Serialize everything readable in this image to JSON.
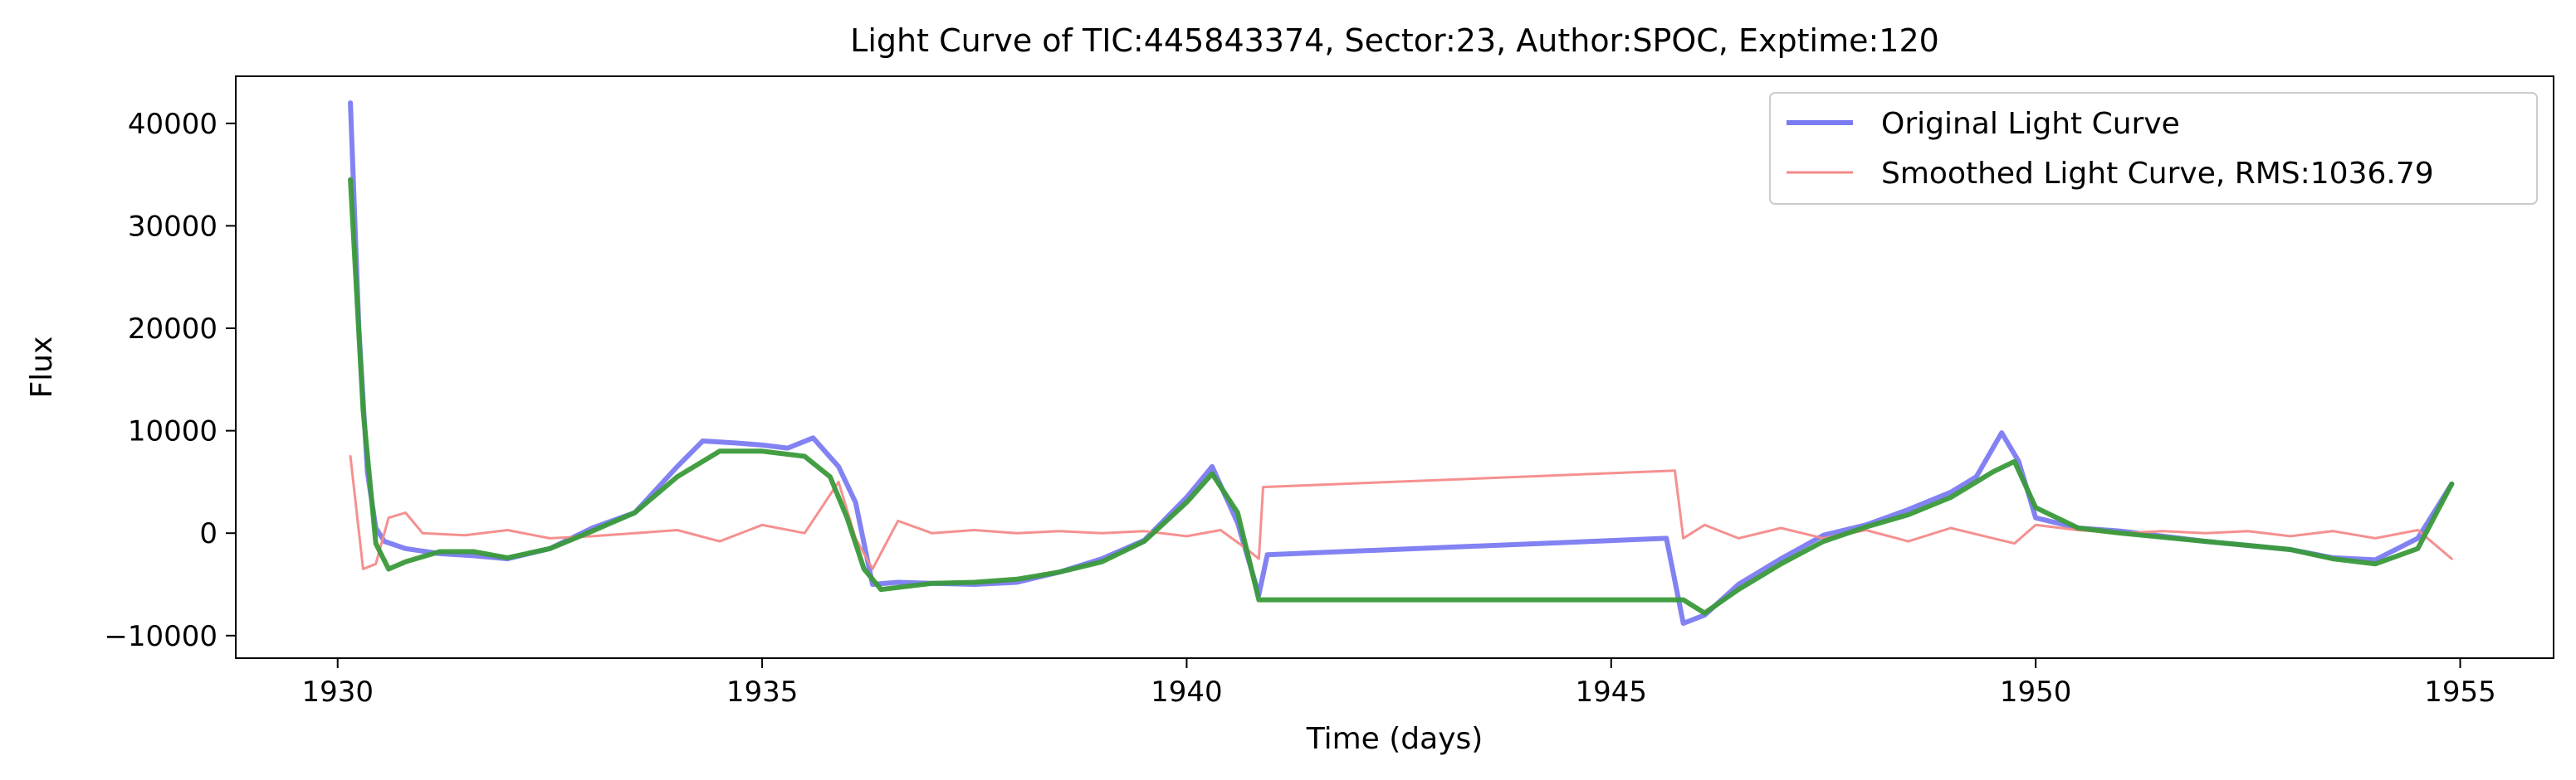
{
  "chart_data": {
    "type": "line",
    "title": "Light Curve of TIC:445843374, Sector:23, Author:SPOC, Exptime:120",
    "xlabel": "Time (days)",
    "ylabel": "Flux",
    "xlim": [
      1928.8,
      1956.1
    ],
    "ylim": [
      -12200,
      44600
    ],
    "xticks": [
      1930,
      1935,
      1940,
      1945,
      1950,
      1955
    ],
    "yticks": [
      -10000,
      0,
      10000,
      20000,
      30000,
      40000
    ],
    "xtick_labels": [
      "1930",
      "1935",
      "1940",
      "1945",
      "1950",
      "1955"
    ],
    "ytick_labels": [
      "−10000",
      "0",
      "10000",
      "20000",
      "30000",
      "40000"
    ],
    "grid": false,
    "legend": {
      "placement": "top-right",
      "entries": [
        {
          "label": "Original Light Curve",
          "color": "#7b7bf2"
        },
        {
          "label": "Smoothed Light Curve, RMS:1036.79",
          "color": "#f48a8a"
        }
      ]
    },
    "series": [
      {
        "name": "Original Light Curve",
        "color": "#7b7bf2",
        "x": [
          1930.15,
          1930.25,
          1930.35,
          1930.45,
          1930.55,
          1930.8,
          1931.2,
          1931.6,
          1932.0,
          1932.5,
          1933.0,
          1933.5,
          1934.0,
          1934.3,
          1934.7,
          1935.0,
          1935.3,
          1935.6,
          1935.9,
          1936.1,
          1936.3,
          1936.6,
          1937.0,
          1937.5,
          1938.0,
          1938.5,
          1939.0,
          1939.5,
          1940.0,
          1940.3,
          1940.6,
          1940.85,
          1940.95,
          1945.65,
          1945.85,
          1946.1,
          1946.5,
          1947.0,
          1947.5,
          1948.0,
          1948.5,
          1949.0,
          1949.3,
          1949.6,
          1949.8,
          1950.0,
          1950.5,
          1951.0,
          1951.5,
          1952.0,
          1952.5,
          1953.0,
          1953.5,
          1954.0,
          1954.5,
          1954.9
        ],
        "y": [
          42000,
          20000,
          6000,
          500,
          -800,
          -1500,
          -2000,
          -2200,
          -2500,
          -1500,
          500,
          2000,
          6500,
          9000,
          8800,
          8600,
          8300,
          9300,
          6500,
          3000,
          -5000,
          -4800,
          -4900,
          -5000,
          -4800,
          -3800,
          -2500,
          -700,
          3500,
          6500,
          1000,
          -6000,
          -2100,
          -500,
          -8800,
          -8000,
          -5000,
          -2500,
          -200,
          800,
          2300,
          4000,
          5500,
          9800,
          7000,
          1500,
          500,
          200,
          -300,
          -800,
          -1200,
          -1600,
          -2400,
          -2600,
          -500,
          4800
        ]
      },
      {
        "name": "Smoothed Light Curve, RMS:1036.79",
        "color": "#f48a8a",
        "x": [
          1930.15,
          1930.3,
          1930.45,
          1930.6,
          1930.8,
          1931.0,
          1931.5,
          1932.0,
          1932.5,
          1933.0,
          1933.5,
          1934.0,
          1934.5,
          1935.0,
          1935.5,
          1935.9,
          1936.1,
          1936.3,
          1936.6,
          1937.0,
          1937.5,
          1938.0,
          1938.5,
          1939.0,
          1939.5,
          1940.0,
          1940.4,
          1940.7,
          1940.85,
          1940.9,
          1945.75,
          1945.85,
          1946.1,
          1946.5,
          1947.0,
          1947.5,
          1948.0,
          1948.5,
          1949.0,
          1949.5,
          1949.75,
          1950.0,
          1950.5,
          1951.0,
          1951.5,
          1952.0,
          1952.5,
          1953.0,
          1953.5,
          1954.0,
          1954.5,
          1954.9
        ],
        "y": [
          7500,
          -3500,
          -3000,
          1500,
          2000,
          0,
          -200,
          300,
          -500,
          -300,
          0,
          300,
          -800,
          800,
          0,
          5000,
          -500,
          -3500,
          1200,
          0,
          300,
          0,
          200,
          0,
          200,
          -300,
          300,
          -1500,
          -2500,
          4500,
          6100,
          -500,
          800,
          -500,
          500,
          -500,
          300,
          -800,
          500,
          -500,
          -1000,
          800,
          300,
          0,
          200,
          0,
          200,
          -300,
          200,
          -500,
          300,
          -2500
        ]
      },
      {
        "name": "",
        "color": "#3a9a3a",
        "x": [
          1930.15,
          1930.3,
          1930.45,
          1930.6,
          1930.8,
          1931.2,
          1931.6,
          1932.0,
          1932.5,
          1933.0,
          1933.5,
          1934.0,
          1934.5,
          1935.0,
          1935.5,
          1935.8,
          1936.0,
          1936.2,
          1936.4,
          1936.6,
          1937.0,
          1937.5,
          1938.0,
          1938.5,
          1939.0,
          1939.5,
          1940.0,
          1940.3,
          1940.6,
          1940.85,
          1941.0,
          1945.7,
          1945.85,
          1946.1,
          1946.5,
          1947.0,
          1947.5,
          1948.0,
          1948.5,
          1949.0,
          1949.5,
          1949.75,
          1950.0,
          1950.5,
          1951.0,
          1951.5,
          1952.0,
          1952.5,
          1953.0,
          1953.5,
          1954.0,
          1954.5,
          1954.9
        ],
        "y": [
          34500,
          12000,
          -1000,
          -3500,
          -2800,
          -1800,
          -1800,
          -2400,
          -1500,
          200,
          2000,
          5500,
          8000,
          8000,
          7500,
          5500,
          1500,
          -3500,
          -5500,
          -5300,
          -4900,
          -4800,
          -4500,
          -3800,
          -2800,
          -800,
          3000,
          5800,
          2000,
          -6500,
          -6500,
          -6500,
          -6500,
          -7800,
          -5500,
          -3000,
          -800,
          600,
          1800,
          3500,
          6000,
          7000,
          2500,
          500,
          0,
          -400,
          -800,
          -1200,
          -1600,
          -2500,
          -3000,
          -1500,
          4800
        ]
      }
    ]
  }
}
